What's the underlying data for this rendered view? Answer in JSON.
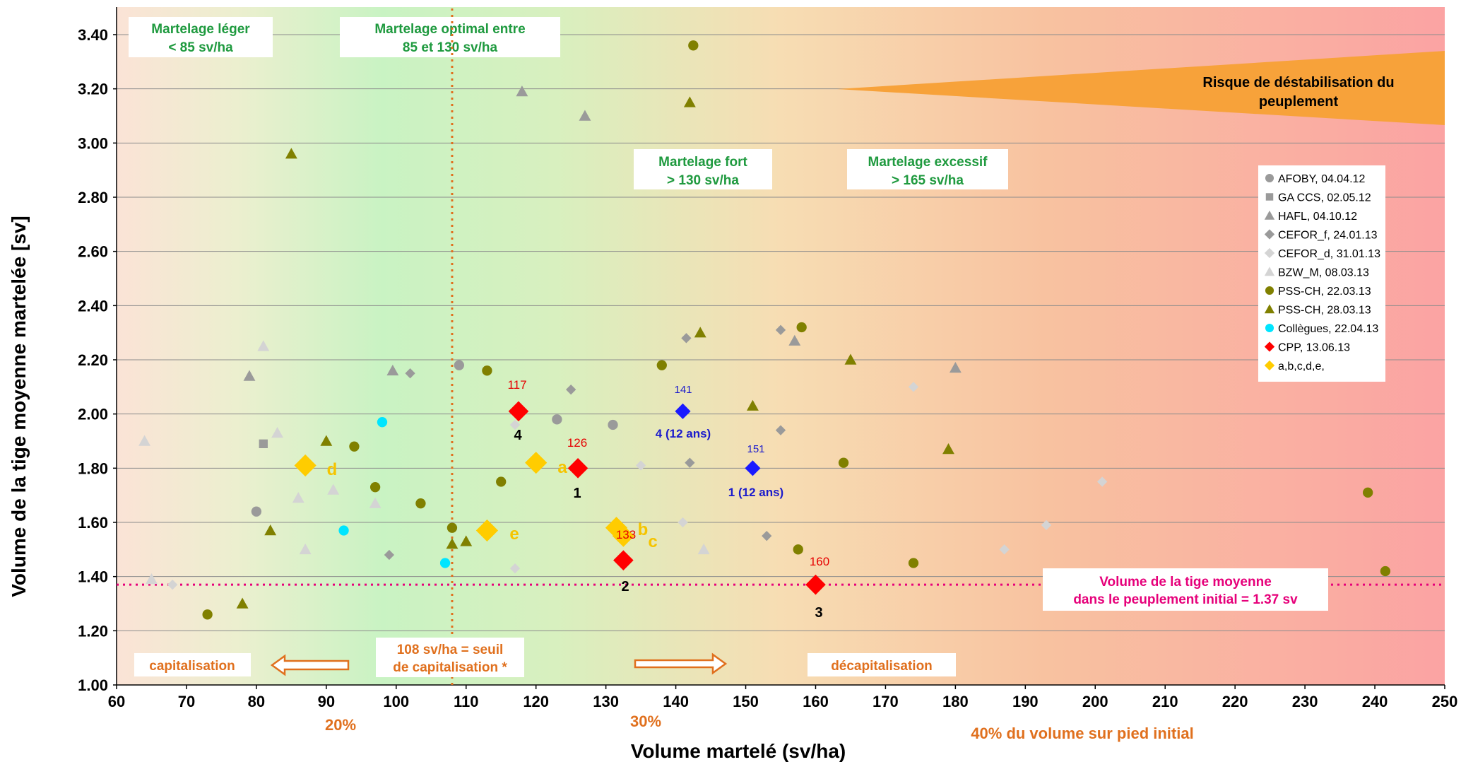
{
  "chart_data": {
    "type": "scatter",
    "xlabel": "Volume martelé (sv/ha)",
    "ylabel": "Volume de la tige moyenne martelée [sv]",
    "xlim": [
      60,
      250
    ],
    "ylim": [
      1.0,
      3.4
    ],
    "xticks": [
      "60",
      "70",
      "80",
      "90",
      "100",
      "110",
      "120",
      "130",
      "140",
      "150",
      "160",
      "170",
      "180",
      "190",
      "200",
      "210",
      "220",
      "230",
      "240",
      "250"
    ],
    "yticks": [
      "1.00",
      "1.20",
      "1.40",
      "1.60",
      "1.80",
      "2.00",
      "2.20",
      "2.40",
      "2.60",
      "2.80",
      "3.00",
      "3.20",
      "3.40"
    ],
    "grid": "horizontal",
    "legend_position": "right",
    "series": [
      {
        "name": "AFOBY, 04.04.12",
        "marker": "circle",
        "color": "#9a9a9a",
        "points": [
          [
            80,
            1.64
          ],
          [
            109,
            2.18
          ],
          [
            123,
            1.98
          ],
          [
            131,
            1.96
          ]
        ]
      },
      {
        "name": "GA CCS, 02.05.12",
        "marker": "square",
        "color": "#9a9a9a",
        "points": [
          [
            81,
            1.89
          ]
        ]
      },
      {
        "name": "HAFL, 04.10.12",
        "marker": "triangle",
        "color": "#9a9a9a",
        "points": [
          [
            79,
            2.14
          ],
          [
            99.5,
            2.16
          ],
          [
            118,
            3.19
          ],
          [
            127,
            3.1
          ],
          [
            157,
            2.27
          ],
          [
            180,
            2.17
          ]
        ]
      },
      {
        "name": "CEFOR_f, 24.01.13",
        "marker": "diamond",
        "color": "#9a9a9a",
        "points": [
          [
            99,
            1.48
          ],
          [
            102,
            2.15
          ],
          [
            125,
            2.09
          ],
          [
            142,
            1.82
          ],
          [
            155,
            1.94
          ],
          [
            153,
            1.55
          ],
          [
            141.5,
            2.28
          ],
          [
            155,
            2.31
          ]
        ]
      },
      {
        "name": "CEFOR_d, 31.01.13",
        "marker": "diamond",
        "color": "#d4d4d4",
        "points": [
          [
            68,
            1.37
          ],
          [
            117,
            1.43
          ],
          [
            135,
            1.81
          ],
          [
            141,
            1.6
          ],
          [
            174,
            2.1
          ],
          [
            187,
            1.5
          ],
          [
            201,
            1.75
          ],
          [
            193,
            1.59
          ],
          [
            117,
            1.96
          ]
        ]
      },
      {
        "name": "BZW_M, 08.03.13",
        "marker": "triangle",
        "color": "#d4d4d4",
        "points": [
          [
            64,
            1.9
          ],
          [
            65,
            1.39
          ],
          [
            81,
            2.25
          ],
          [
            83,
            1.93
          ],
          [
            86,
            1.69
          ],
          [
            87,
            1.5
          ],
          [
            91,
            1.72
          ],
          [
            97,
            1.67
          ],
          [
            144,
            1.5
          ]
        ]
      },
      {
        "name": "PSS-CH, 22.03.13",
        "marker": "circle",
        "color": "#808000",
        "points": [
          [
            73,
            1.26
          ],
          [
            94,
            1.88
          ],
          [
            97,
            1.73
          ],
          [
            103.5,
            1.67
          ],
          [
            108,
            1.58
          ],
          [
            113,
            2.16
          ],
          [
            115,
            1.75
          ],
          [
            138,
            2.18
          ],
          [
            142.5,
            3.36
          ],
          [
            157.5,
            1.5
          ],
          [
            158,
            2.32
          ],
          [
            164,
            1.82
          ],
          [
            174,
            1.45
          ],
          [
            239,
            1.71
          ],
          [
            241.5,
            1.42
          ]
        ]
      },
      {
        "name": "PSS-CH, 28.03.13",
        "marker": "triangle",
        "color": "#808000",
        "points": [
          [
            78,
            1.3
          ],
          [
            82,
            1.57
          ],
          [
            85,
            2.96
          ],
          [
            90,
            1.9
          ],
          [
            108,
            1.52
          ],
          [
            110,
            1.53
          ],
          [
            142,
            3.15
          ],
          [
            143.5,
            2.3
          ],
          [
            151,
            2.03
          ],
          [
            165,
            2.2
          ],
          [
            179,
            1.87
          ]
        ]
      },
      {
        "name": "Collègues, 22.04.13",
        "marker": "circle",
        "color": "#00e5ff",
        "points": [
          [
            92.5,
            1.57
          ],
          [
            98,
            1.97
          ],
          [
            107,
            1.45
          ]
        ]
      },
      {
        "name": "CPP, 13.06.13",
        "marker": "diamond",
        "color": "#ff0000",
        "points": [
          [
            117.5,
            2.01
          ],
          [
            126,
            1.8
          ],
          [
            132.5,
            1.46
          ],
          [
            160,
            1.37
          ]
        ]
      },
      {
        "name": "a,b,c,d,e,",
        "marker": "diamond",
        "color": "#ffcc00",
        "points": [
          [
            120,
            1.82
          ],
          [
            131.5,
            1.58
          ],
          [
            132.5,
            1.55
          ],
          [
            87,
            1.81
          ],
          [
            113,
            1.57
          ]
        ]
      }
    ],
    "blue_points": [
      [
        141,
        2.01
      ],
      [
        151,
        1.8
      ]
    ],
    "reference_lines": {
      "vertical_x": 108,
      "horizontal_y": 1.37
    }
  },
  "annotations": {
    "box_leger": [
      "Martelage léger",
      "< 85 sv/ha"
    ],
    "box_optimal": [
      "Martelage optimal entre",
      "85 et 130 sv/ha"
    ],
    "box_fort": [
      "Martelage fort",
      "> 130 sv/ha"
    ],
    "box_excessif": [
      "Martelage excessif",
      "> 165 sv/ha"
    ],
    "risk": [
      "Risque de déstabilisation du",
      "peuplement"
    ],
    "box_tige": [
      "Volume de la tige moyenne",
      "dans le peuplement initial = 1.37 sv"
    ],
    "capitalisation": "capitalisation",
    "seuil": [
      "108 sv/ha = seuil",
      "de capitalisation *"
    ],
    "decapitalisation": "décapitalisation",
    "pct_20": "20%",
    "pct_30": "30%",
    "pct_40": "40% du volume sur pied initial"
  },
  "point_labels": {
    "red_117": "117",
    "red_126": "126",
    "red_133": "133",
    "red_160": "160",
    "black_4": "4",
    "black_1": "1",
    "black_2": "2",
    "black_3": "3",
    "blue_141": "141",
    "blue_151": "151",
    "blue_4": "4 (12 ans)",
    "blue_1": "1 (12 ans)",
    "y_a": "a",
    "y_b": "b",
    "y_c": "c",
    "y_d": "d",
    "y_e": "e"
  },
  "colors": {
    "green_text": "#1f9a3f",
    "orange_text": "#e0701e",
    "pink": "#e6007a",
    "red": "#ff0000",
    "blue": "#1a1aff",
    "yellow": "#ffcc00",
    "risk_wedge": "#f7a23a"
  }
}
